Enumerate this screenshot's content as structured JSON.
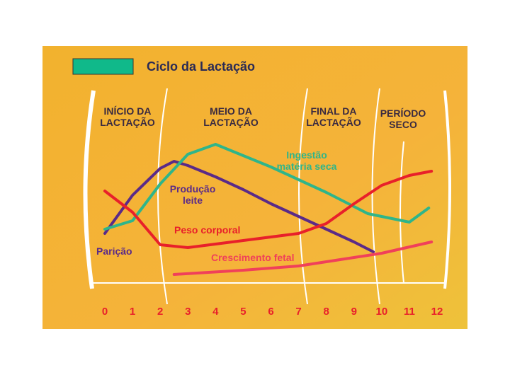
{
  "chart_data": {
    "type": "line",
    "title": "Ciclo da Lactação",
    "phases": [
      "INÍCIO DA LACTAÇÃO",
      "MEIO DA LACTAÇÃO",
      "FINAL DA LACTAÇÃO",
      "PERÍODO SECO"
    ],
    "annotations": [
      "Parição"
    ],
    "xlim": [
      0,
      12
    ],
    "xticks": [
      0,
      1,
      2,
      3,
      4,
      5,
      6,
      7,
      8,
      9,
      10,
      11,
      12
    ],
    "ylim": [
      0,
      100
    ],
    "series": [
      {
        "name": "Produção leite",
        "color": "#5a2a88",
        "x": [
          0,
          1,
          2,
          2.5,
          3,
          4,
          5,
          6,
          7,
          8,
          9,
          9.7
        ],
        "values": [
          35,
          62,
          81,
          86,
          83,
          75,
          66,
          56,
          47,
          38,
          29,
          22
        ]
      },
      {
        "name": "Ingestão matéria seca",
        "color": "#2fb58a",
        "x": [
          0,
          1,
          2,
          3,
          4,
          5,
          6,
          7,
          8,
          9,
          9.5,
          11,
          11.7
        ],
        "values": [
          38,
          44,
          70,
          91,
          98,
          90,
          82,
          73,
          64,
          54,
          49,
          43,
          53
        ]
      },
      {
        "name": "Peso corporal",
        "color": "#e8202a",
        "x": [
          0,
          1,
          2,
          3,
          5,
          7,
          8,
          9,
          10,
          11,
          11.8
        ],
        "values": [
          65,
          50,
          27,
          25,
          30,
          35,
          42,
          56,
          69,
          76,
          79
        ]
      },
      {
        "name": "Crescimento fetal",
        "color": "#f0405a",
        "x": [
          2.5,
          5,
          7,
          9,
          10,
          11.8
        ],
        "values": [
          6,
          9,
          12,
          18,
          21,
          29
        ]
      }
    ]
  }
}
